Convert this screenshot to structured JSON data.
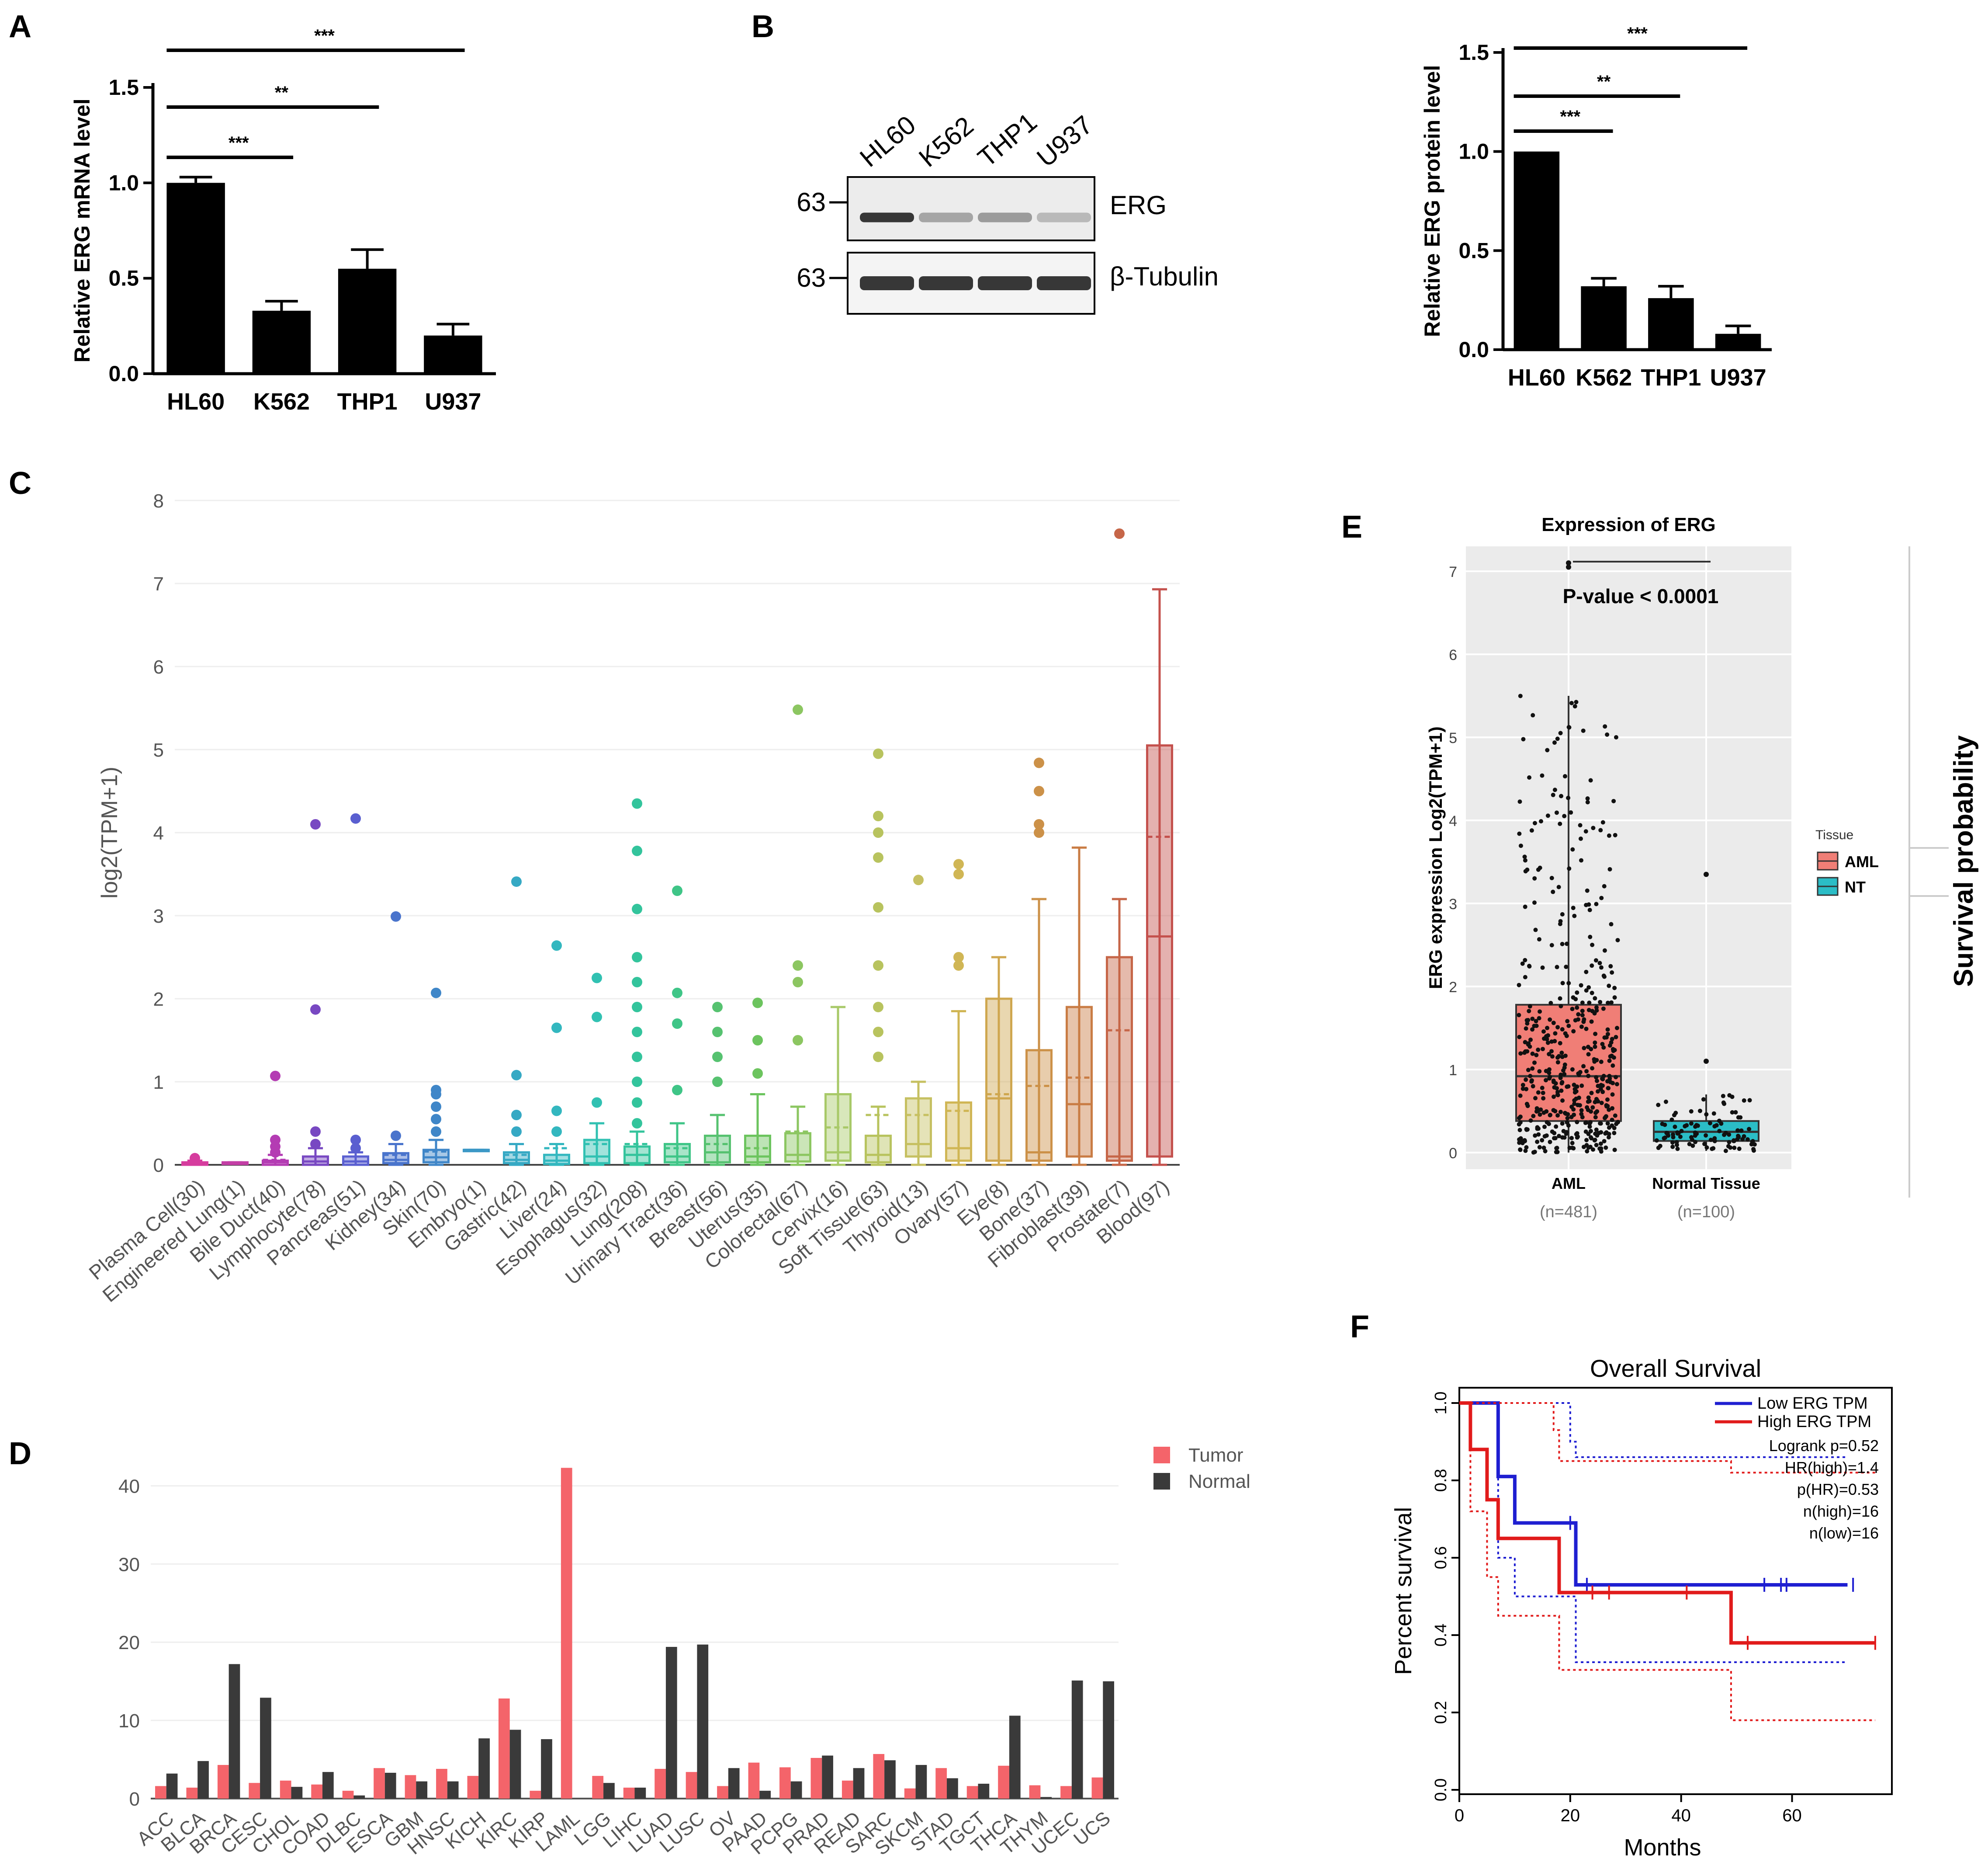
{
  "panel_letters": [
    "A",
    "B",
    "C",
    "D",
    "E",
    "F"
  ],
  "blot": {
    "lanes": [
      "HL60",
      "K562",
      "THP1",
      "U937"
    ],
    "markers": [
      "63",
      "63"
    ],
    "bands": [
      "ERG",
      "β-Tubulin"
    ],
    "erg_intensity": [
      1.0,
      0.45,
      0.5,
      0.35
    ],
    "tubulin_intensity": [
      1.0,
      1.0,
      1.0,
      1.0
    ]
  },
  "survival_side_label": "Survival probability",
  "chart_data": [
    {
      "id": "A",
      "type": "bar",
      "title": "",
      "xlabel": "",
      "ylabel": "Relative ERG mRNA level",
      "categories": [
        "HL60",
        "K562",
        "THP1",
        "U937"
      ],
      "values": [
        1.0,
        0.33,
        0.55,
        0.2
      ],
      "errors": [
        0.03,
        0.05,
        0.1,
        0.06
      ],
      "ylim": [
        0,
        1.5
      ],
      "yticks": [
        "0.0",
        "0.5",
        "1.0",
        "1.5"
      ],
      "significance": [
        {
          "from": 0,
          "to": 1,
          "label": "***"
        },
        {
          "from": 0,
          "to": 2,
          "label": "**"
        },
        {
          "from": 0,
          "to": 3,
          "label": "***"
        }
      ],
      "color": "#000000"
    },
    {
      "id": "B",
      "type": "bar",
      "title": "",
      "xlabel": "",
      "ylabel": "Relative ERG protein level",
      "categories": [
        "HL60",
        "K562",
        "THP1",
        "U937"
      ],
      "values": [
        1.0,
        0.32,
        0.26,
        0.08
      ],
      "errors": [
        0.0,
        0.04,
        0.06,
        0.04
      ],
      "ylim": [
        0,
        1.5
      ],
      "yticks": [
        "0.0",
        "0.5",
        "1.0",
        "1.5"
      ],
      "significance": [
        {
          "from": 0,
          "to": 1,
          "label": "***"
        },
        {
          "from": 0,
          "to": 2,
          "label": "**"
        },
        {
          "from": 0,
          "to": 3,
          "label": "***"
        }
      ],
      "color": "#000000"
    },
    {
      "id": "C",
      "type": "box",
      "title": "",
      "xlabel": "",
      "ylabel": "log2(TPM+1)",
      "ylim": [
        0,
        8
      ],
      "yticks": [
        "0",
        "1",
        "2",
        "3",
        "4",
        "5",
        "6",
        "7",
        "8"
      ],
      "categories": [
        "Plasma Cell(30)",
        "Engineered Lung(1)",
        "Bile Duct(40)",
        "Lymphocyte(78)",
        "Pancreas(51)",
        "Kidney(34)",
        "Skin(70)",
        "Embryo(1)",
        "Gastric(42)",
        "Liver(24)",
        "Esophagus(32)",
        "Lung(208)",
        "Urinary Tract(36)",
        "Breast(56)",
        "Uterus(35)",
        "Colorectal(67)",
        "Cervix(16)",
        "Soft Tissue(63)",
        "Thyroid(13)",
        "Ovary(57)",
        "Eye(8)",
        "Bone(37)",
        "Fibroblast(39)",
        "Prostate(7)",
        "Blood(97)"
      ],
      "colors": [
        "#d63c9e",
        "#c43ea6",
        "#b43cb3",
        "#7848c2",
        "#5a5fd0",
        "#4a74cc",
        "#3f86c8",
        "#3c98c6",
        "#36a9c4",
        "#33b7bf",
        "#31c1b2",
        "#33c49c",
        "#3fc587",
        "#56c270",
        "#6cc45e",
        "#8cc661",
        "#a8c968",
        "#b8c35e",
        "#c6c061",
        "#d0b655",
        "#cfa74f",
        "#cc9148",
        "#c97c44",
        "#c66648",
        "#c4514d"
      ],
      "boxes": [
        {
          "q1": 0,
          "med": 0.01,
          "q3": 0.03,
          "lo": 0,
          "hi": 0.05,
          "mean": 0.02,
          "out": [
            0.08
          ]
        },
        {
          "q1": 0.01,
          "med": 0.02,
          "q3": 0.03,
          "lo": 0.01,
          "hi": 0.03,
          "mean": 0.02,
          "out": []
        },
        {
          "q1": 0,
          "med": 0.03,
          "q3": 0.05,
          "lo": 0,
          "hi": 0.12,
          "mean": 0.06,
          "out": [
            0.15,
            0.22,
            0.3,
            1.07
          ]
        },
        {
          "q1": 0,
          "med": 0.04,
          "q3": 0.1,
          "lo": 0,
          "hi": 0.2,
          "mean": 0.1,
          "out": [
            0.25,
            0.4,
            1.87,
            4.1
          ]
        },
        {
          "q1": 0,
          "med": 0.04,
          "q3": 0.1,
          "lo": 0,
          "hi": 0.15,
          "mean": 0.1,
          "out": [
            0.2,
            0.3,
            4.17
          ]
        },
        {
          "q1": 0.02,
          "med": 0.06,
          "q3": 0.14,
          "lo": 0,
          "hi": 0.25,
          "mean": 0.12,
          "out": [
            0.35,
            2.99
          ]
        },
        {
          "q1": 0.03,
          "med": 0.09,
          "q3": 0.18,
          "lo": 0,
          "hi": 0.3,
          "mean": 0.16,
          "out": [
            0.4,
            0.55,
            0.7,
            0.85,
            0.9,
            2.07
          ]
        },
        {
          "q1": 0.18,
          "med": 0.18,
          "q3": 0.18,
          "lo": 0.18,
          "hi": 0.18,
          "mean": 0.18,
          "out": []
        },
        {
          "q1": 0.02,
          "med": 0.06,
          "q3": 0.15,
          "lo": 0,
          "hi": 0.25,
          "mean": 0.12,
          "out": [
            0.4,
            0.6,
            1.08,
            3.41
          ]
        },
        {
          "q1": 0.01,
          "med": 0.05,
          "q3": 0.12,
          "lo": 0,
          "hi": 0.25,
          "mean": 0.2,
          "out": [
            0.4,
            0.65,
            1.65,
            2.64
          ]
        },
        {
          "q1": 0.02,
          "med": 0.1,
          "q3": 0.3,
          "lo": 0,
          "hi": 0.5,
          "mean": 0.25,
          "out": [
            0.75,
            1.78,
            2.25
          ]
        },
        {
          "q1": 0.02,
          "med": 0.12,
          "q3": 0.22,
          "lo": 0,
          "hi": 0.4,
          "mean": 0.25,
          "out": [
            0.5,
            0.75,
            1.0,
            1.3,
            1.6,
            1.9,
            2.2,
            2.5,
            3.08,
            3.78,
            4.35
          ]
        },
        {
          "q1": 0.03,
          "med": 0.1,
          "q3": 0.25,
          "lo": 0,
          "hi": 0.5,
          "mean": 0.2,
          "out": [
            0.9,
            1.7,
            2.07,
            3.3
          ]
        },
        {
          "q1": 0.03,
          "med": 0.15,
          "q3": 0.35,
          "lo": 0,
          "hi": 0.6,
          "mean": 0.25,
          "out": [
            1.0,
            1.3,
            1.6,
            1.9
          ]
        },
        {
          "q1": 0.03,
          "med": 0.1,
          "q3": 0.35,
          "lo": 0,
          "hi": 0.85,
          "mean": 0.2,
          "out": [
            1.1,
            1.5,
            1.95
          ]
        },
        {
          "q1": 0.04,
          "med": 0.12,
          "q3": 0.38,
          "lo": 0,
          "hi": 0.7,
          "mean": 0.4,
          "out": [
            1.5,
            2.2,
            2.4,
            5.48
          ]
        },
        {
          "q1": 0.05,
          "med": 0.15,
          "q3": 0.85,
          "lo": 0,
          "hi": 1.9,
          "mean": 0.45,
          "out": []
        },
        {
          "q1": 0.03,
          "med": 0.12,
          "q3": 0.35,
          "lo": 0,
          "hi": 0.7,
          "mean": 0.6,
          "out": [
            1.3,
            1.6,
            1.9,
            2.4,
            3.1,
            3.7,
            4.0,
            4.2,
            4.95
          ]
        },
        {
          "q1": 0.1,
          "med": 0.25,
          "q3": 0.8,
          "lo": 0,
          "hi": 1.0,
          "mean": 0.6,
          "out": [
            3.43
          ]
        },
        {
          "q1": 0.05,
          "med": 0.2,
          "q3": 0.75,
          "lo": 0,
          "hi": 1.85,
          "mean": 0.65,
          "out": [
            2.4,
            2.5,
            3.5,
            3.62
          ]
        },
        {
          "q1": 0.05,
          "med": 0.8,
          "q3": 2.0,
          "lo": 0,
          "hi": 2.5,
          "mean": 0.85,
          "out": []
        },
        {
          "q1": 0.05,
          "med": 0.15,
          "q3": 1.38,
          "lo": 0,
          "hi": 3.2,
          "mean": 0.95,
          "out": [
            4.0,
            4.1,
            4.5,
            4.84
          ]
        },
        {
          "q1": 0.1,
          "med": 0.73,
          "q3": 1.9,
          "lo": 0,
          "hi": 3.82,
          "mean": 1.05,
          "out": []
        },
        {
          "q1": 0.05,
          "med": 0.1,
          "q3": 2.5,
          "lo": 0,
          "hi": 3.2,
          "mean": 1.62,
          "out": [
            7.6
          ]
        },
        {
          "q1": 0.1,
          "med": 2.75,
          "q3": 5.05,
          "lo": 0,
          "hi": 6.93,
          "mean": 3.95,
          "out": []
        }
      ]
    },
    {
      "id": "D",
      "type": "bar",
      "title": "",
      "xlabel": "",
      "ylabel": "",
      "ylim": [
        0,
        45
      ],
      "yticks": [
        "0",
        "10",
        "20",
        "30",
        "40"
      ],
      "categories": [
        "ACC",
        "BLCA",
        "BRCA",
        "CESC",
        "CHOL",
        "COAD",
        "DLBC",
        "ESCA",
        "GBM",
        "HNSC",
        "KICH",
        "KIRC",
        "KIRP",
        "LAML",
        "LGG",
        "LIHC",
        "LUAD",
        "LUSC",
        "OV",
        "PAAD",
        "PCPG",
        "PRAD",
        "READ",
        "SARC",
        "SKCM",
        "STAD",
        "TGCT",
        "THCA",
        "THYM",
        "UCEC",
        "UCS"
      ],
      "series": [
        {
          "name": "Tumor",
          "color": "#f4646a",
          "values": [
            1.6,
            1.4,
            4.3,
            2.0,
            2.3,
            1.8,
            1.0,
            3.9,
            3.0,
            3.8,
            2.9,
            12.8,
            1.0,
            42.3,
            2.9,
            1.4,
            3.8,
            3.4,
            1.6,
            4.6,
            4.0,
            5.2,
            2.3,
            5.7,
            1.3,
            3.9,
            1.6,
            4.2,
            1.7,
            1.6,
            2.7
          ]
        },
        {
          "name": "Normal",
          "color": "#3a3a3a",
          "values": [
            3.2,
            4.8,
            17.2,
            12.9,
            1.5,
            3.4,
            0.4,
            3.3,
            2.2,
            2.2,
            7.7,
            8.8,
            7.6,
            0,
            2.0,
            1.4,
            19.4,
            19.7,
            3.9,
            1.0,
            2.2,
            5.5,
            3.9,
            4.9,
            4.3,
            2.6,
            1.9,
            10.6,
            0.2,
            15.1,
            15.0
          ]
        }
      ],
      "legend": "top-right"
    },
    {
      "id": "E",
      "type": "box",
      "title": "Expression of ERG",
      "xlabel": "",
      "ylabel": "ERG expression Log2(TPM+1)",
      "ylim": [
        0,
        7
      ],
      "yticks": [
        "0",
        "1",
        "2",
        "3",
        "4",
        "5",
        "6",
        "7"
      ],
      "categories": [
        "AML",
        "Normal Tissue"
      ],
      "counts": [
        "(n=481)",
        "(n=100)"
      ],
      "boxes": [
        {
          "q1": 0.38,
          "med": 0.92,
          "q3": 1.78,
          "lo": 0,
          "hi": 5.5,
          "color": "#f07e76",
          "n": 481,
          "out": [
            7.1,
            7.05
          ]
        },
        {
          "q1": 0.14,
          "med": 0.25,
          "q3": 0.38,
          "lo": 0.02,
          "hi": 0.7,
          "color": "#2bbdc6",
          "n": 100,
          "out": [
            1.1,
            3.35
          ]
        }
      ],
      "annotation": "P-value < 0.0001",
      "legend_title": "Tissue",
      "legend_entries": [
        "AML",
        "NT"
      ],
      "legend": "right"
    },
    {
      "id": "F",
      "type": "line",
      "title": "Overall Survival",
      "xlabel": "Months",
      "ylabel": "Percent survival",
      "xlim": [
        0,
        78
      ],
      "ylim": [
        0,
        1
      ],
      "xticks": [
        "0",
        "20",
        "40",
        "60"
      ],
      "yticks": [
        "0.0",
        "0.2",
        "0.4",
        "0.6",
        "0.8",
        "1.0"
      ],
      "series": [
        {
          "name": "Low ERG TPM",
          "color": "#1f1fd1",
          "x": [
            0,
            6,
            7,
            9,
            10,
            20,
            21,
            70
          ],
          "y": [
            1.0,
            1.0,
            0.81,
            0.81,
            0.69,
            0.69,
            0.53,
            0.53
          ],
          "ci_upper_x": [
            0,
            8,
            20,
            21,
            70
          ],
          "ci_upper_y": [
            1.0,
            1.0,
            0.9,
            0.86,
            0.86
          ],
          "ci_lower_x": [
            0,
            6,
            7,
            9,
            10,
            20,
            21,
            70
          ],
          "ci_lower_y": [
            1.0,
            1.0,
            0.6,
            0.6,
            0.5,
            0.5,
            0.33,
            0.33
          ],
          "censors": [
            20,
            23,
            55,
            58,
            59,
            71
          ]
        },
        {
          "name": "High ERG TPM",
          "color": "#e11b1b",
          "x": [
            0,
            2,
            4,
            5,
            7,
            17,
            18,
            48,
            49,
            75
          ],
          "y": [
            1.0,
            0.88,
            0.88,
            0.75,
            0.65,
            0.65,
            0.51,
            0.51,
            0.38,
            0.38
          ],
          "ci_upper_x": [
            0,
            8,
            17,
            18,
            48,
            49,
            75
          ],
          "ci_upper_y": [
            1.0,
            1.0,
            0.93,
            0.85,
            0.85,
            0.82,
            0.82
          ],
          "ci_lower_x": [
            0,
            2,
            4,
            5,
            7,
            17,
            18,
            48,
            49,
            75
          ],
          "ci_lower_y": [
            1.0,
            0.72,
            0.72,
            0.55,
            0.45,
            0.45,
            0.31,
            0.31,
            0.18,
            0.18
          ],
          "censors": [
            24,
            27,
            41,
            52,
            75
          ]
        }
      ],
      "stats": [
        "Logrank p=0.52",
        "HR(high)=1.4",
        "p(HR)=0.53",
        "n(high)=16",
        "n(low)=16"
      ],
      "legend": "top-right"
    }
  ]
}
